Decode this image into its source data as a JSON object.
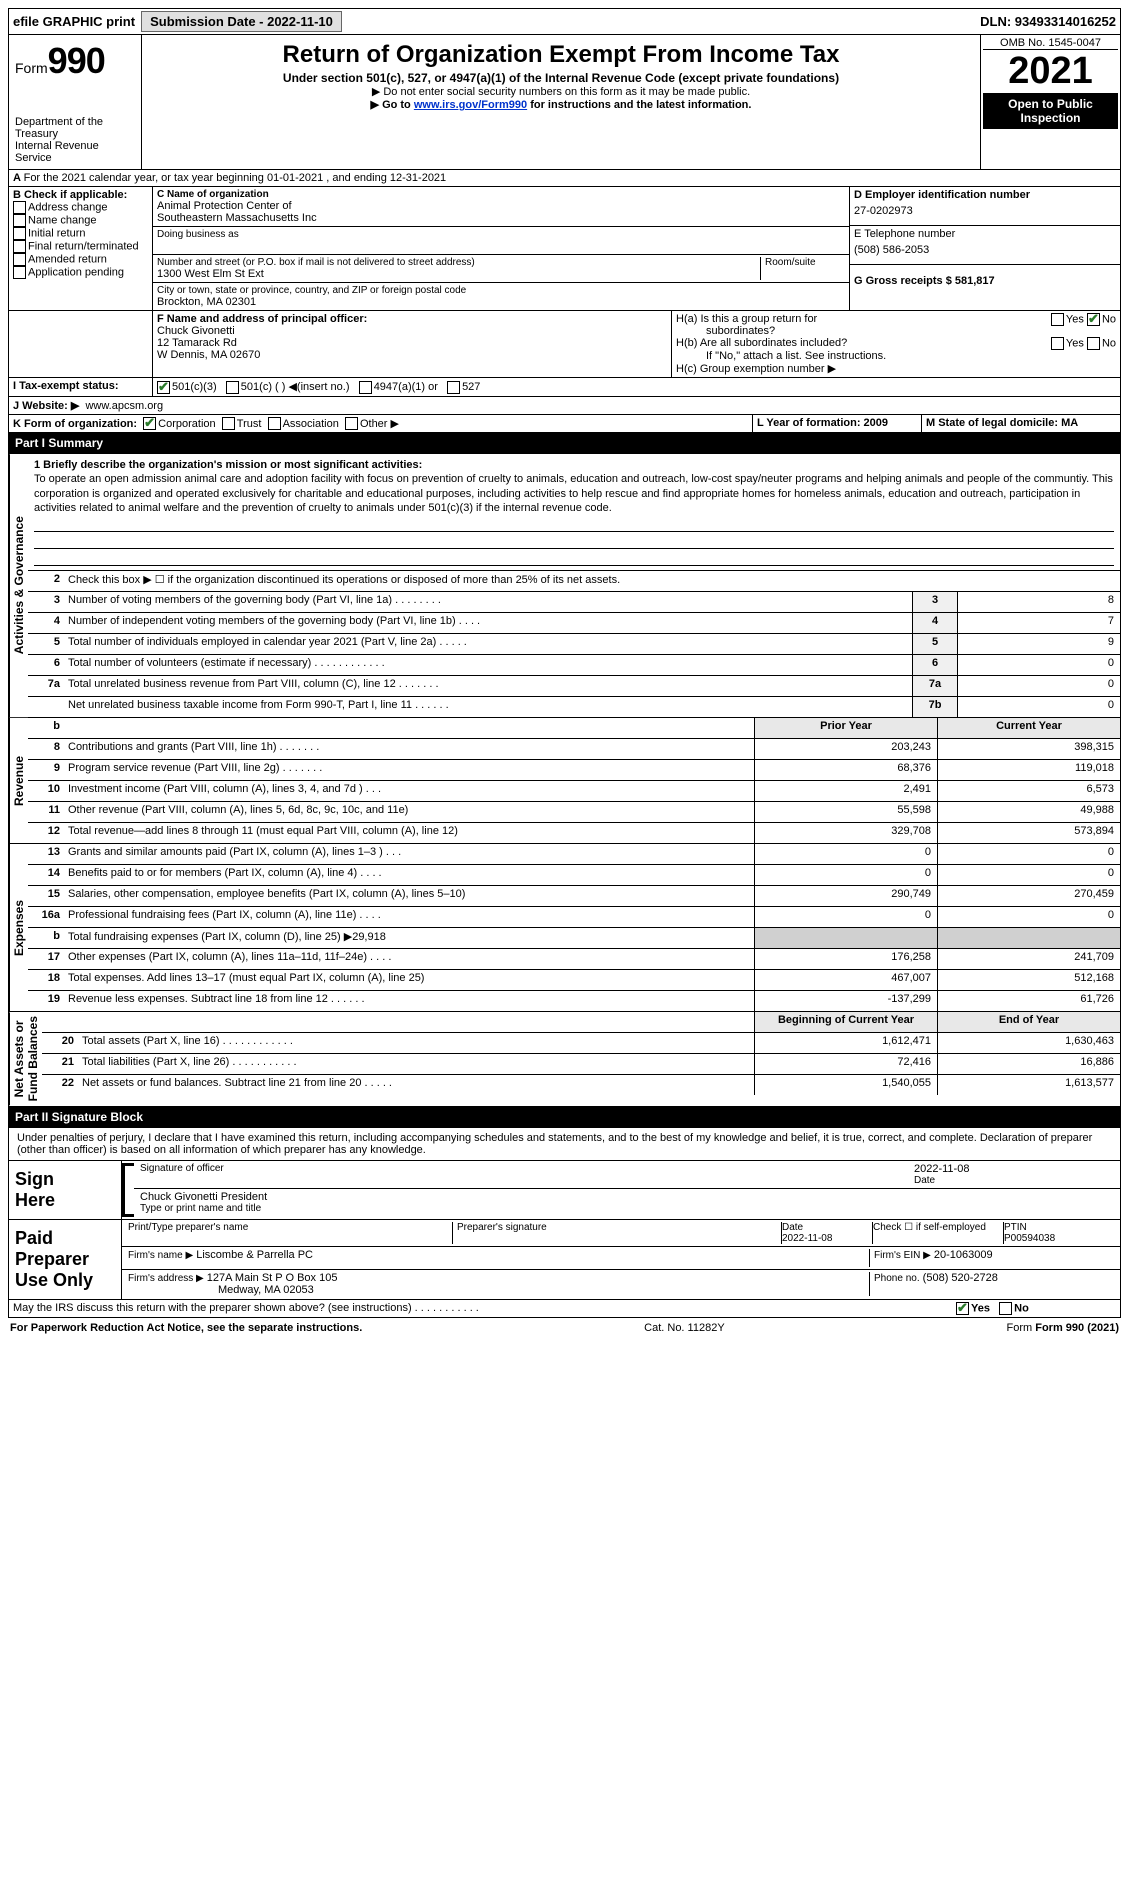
{
  "top_bar": {
    "efile": "efile GRAPHIC print",
    "submission_btn": "Submission Date - 2022-11-10",
    "dln": "DLN: 93493314016252"
  },
  "header": {
    "form_prefix": "Form",
    "form_number": "990",
    "title": "Return of Organization Exempt From Income Tax",
    "subtitle": "Under section 501(c), 527, or 4947(a)(1) of the Internal Revenue Code (except private foundations)",
    "note1": "▶ Do not enter social security numbers on this form as it may be made public.",
    "note2_prefix": "▶ Go to ",
    "note2_link": "www.irs.gov/Form990",
    "note2_suffix": " for instructions and the latest information.",
    "dept": "Department of the Treasury\nInternal Revenue Service",
    "omb": "OMB No. 1545-0047",
    "year": "2021",
    "open": "Open to Public\nInspection"
  },
  "period": {
    "line": "For the 2021 calendar year, or tax year beginning 01-01-2021   , and ending 12-31-2021"
  },
  "section_b": {
    "label": "B Check if applicable:",
    "opts": [
      "Address change",
      "Name change",
      "Initial return",
      "Final return/terminated",
      "Amended return",
      "Application pending"
    ]
  },
  "section_c": {
    "name_label": "C Name of organization",
    "name1": "Animal Protection Center of",
    "name2": "Southeastern Massachusetts Inc",
    "dba_label": "Doing business as",
    "addr_label": "Number and street (or P.O. box if mail is not delivered to street address)",
    "room_label": "Room/suite",
    "addr": "1300 West Elm St Ext",
    "city_label": "City or town, state or province, country, and ZIP or foreign postal code",
    "city": "Brockton, MA  02301"
  },
  "section_d": {
    "label": "D Employer identification number",
    "ein": "27-0202973"
  },
  "section_e": {
    "label": "E Telephone number",
    "phone": "(508) 586-2053"
  },
  "section_g": {
    "label": "G Gross receipts $ 581,817"
  },
  "section_f": {
    "label": "F  Name and address of principal officer:",
    "name": "Chuck Givonetti",
    "addr1": "12 Tamarack Rd",
    "addr2": "W Dennis, MA  02670"
  },
  "section_h": {
    "ha": "H(a)  Is this a group return for",
    "ha2": "subordinates?",
    "hb": "H(b)  Are all subordinates included?",
    "hb2": "If \"No,\" attach a list. See instructions.",
    "hc": "H(c)  Group exemption number ▶"
  },
  "tax_status": {
    "label": "I     Tax-exempt status:",
    "opt1": "501(c)(3)",
    "opt2": "501(c) (  ) ◀(insert no.)",
    "opt3": "4947(a)(1) or",
    "opt4": "527"
  },
  "website": {
    "label": "J    Website: ▶",
    "url": "www.apcsm.org"
  },
  "section_k": {
    "label": "K Form of organization:",
    "opts": [
      "Corporation",
      "Trust",
      "Association",
      "Other ▶"
    ]
  },
  "section_l": {
    "label": "L Year of formation: 2009"
  },
  "section_m": {
    "label": "M State of legal domicile: MA"
  },
  "part1": {
    "header": "Part I      Summary",
    "vtabs": {
      "gov": "Activities & Governance",
      "rev": "Revenue",
      "exp": "Expenses",
      "net": "Net Assets or\nFund Balances"
    },
    "mission_label": "1  Briefly describe the organization's mission or most significant activities:",
    "mission_text": "To operate an open admission animal care and adoption facility with focus on prevention of cruelty to animals, education and outreach, low-cost spay/neuter programs and helping animals and people of the communtiy. This corporation is organized and operated exclusively for charitable and educational purposes, including activities to help rescue and find appropriate homes for homeless animals, education and outreach, participation in activities related to animal welfare and the prevention of cruelty to animals under 501(c)(3) if the internal revenue code.",
    "line2": "Check this box ▶ ☐ if the organization discontinued its operations or disposed of more than 25% of its net assets.",
    "gov_lines": [
      {
        "n": "3",
        "t": "Number of voting members of the governing body (Part VI, line 1a)  .    .    .    .    .    .    .    .",
        "box": "3",
        "v": "8"
      },
      {
        "n": "4",
        "t": "Number of independent voting members of the governing body (Part VI, line 1b)  .    .    .    .",
        "box": "4",
        "v": "7"
      },
      {
        "n": "5",
        "t": "Total number of individuals employed in calendar year 2021 (Part V, line 2a)  .    .    .    .    .",
        "box": "5",
        "v": "9"
      },
      {
        "n": "6",
        "t": "Total number of volunteers (estimate if necessary)  .    .    .    .    .    .    .    .    .    .    .    .",
        "box": "6",
        "v": "0"
      },
      {
        "n": "7a",
        "t": "Total unrelated business revenue from Part VIII, column (C), line 12  .    .    .    .    .    .    .",
        "box": "7a",
        "v": "0"
      },
      {
        "n": "",
        "t": "Net unrelated business taxable income from Form 990-T, Part I, line 11  .    .    .    .    .    .",
        "box": "7b",
        "v": "0"
      }
    ],
    "col_prior": "Prior Year",
    "col_current": "Current Year",
    "rev_lines": [
      {
        "n": "8",
        "t": "Contributions and grants (Part VIII, line 1h)  .    .    .    .    .    .    .",
        "p": "203,243",
        "c": "398,315"
      },
      {
        "n": "9",
        "t": "Program service revenue (Part VIII, line 2g)  .    .    .    .    .    .    .",
        "p": "68,376",
        "c": "119,018"
      },
      {
        "n": "10",
        "t": "Investment income (Part VIII, column (A), lines 3, 4, and 7d )  .    .    .",
        "p": "2,491",
        "c": "6,573"
      },
      {
        "n": "11",
        "t": "Other revenue (Part VIII, column (A), lines 5, 6d, 8c, 9c, 10c, and 11e)",
        "p": "55,598",
        "c": "49,988"
      },
      {
        "n": "12",
        "t": "Total revenue—add lines 8 through 11 (must equal Part VIII, column (A), line 12)",
        "p": "329,708",
        "c": "573,894"
      }
    ],
    "exp_lines": [
      {
        "n": "13",
        "t": "Grants and similar amounts paid (Part IX, column (A), lines 1–3 )  .    .    .",
        "p": "0",
        "c": "0"
      },
      {
        "n": "14",
        "t": "Benefits paid to or for members (Part IX, column (A), line 4)  .    .    .    .",
        "p": "0",
        "c": "0"
      },
      {
        "n": "15",
        "t": "Salaries, other compensation, employee benefits (Part IX, column (A), lines 5–10)",
        "p": "290,749",
        "c": "270,459"
      },
      {
        "n": "16a",
        "t": "Professional fundraising fees (Part IX, column (A), line 11e)  .    .    .    .",
        "p": "0",
        "c": "0"
      },
      {
        "n": "b",
        "t": "Total fundraising expenses (Part IX, column (D), line 25) ▶29,918",
        "p": "",
        "c": "",
        "shade": true
      },
      {
        "n": "17",
        "t": "Other expenses (Part IX, column (A), lines 11a–11d, 11f–24e)  .    .    .    .",
        "p": "176,258",
        "c": "241,709"
      },
      {
        "n": "18",
        "t": "Total expenses. Add lines 13–17 (must equal Part IX, column (A), line 25)",
        "p": "467,007",
        "c": "512,168"
      },
      {
        "n": "19",
        "t": "Revenue less expenses. Subtract line 18 from line 12  .    .    .    .    .    .",
        "p": "-137,299",
        "c": "61,726"
      }
    ],
    "col_begin": "Beginning of Current Year",
    "col_end": "End of Year",
    "net_lines": [
      {
        "n": "20",
        "t": "Total assets (Part X, line 16)  .    .    .    .    .    .    .    .    .    .    .    .",
        "p": "1,612,471",
        "c": "1,630,463"
      },
      {
        "n": "21",
        "t": "Total liabilities (Part X, line 26)  .    .    .    .    .    .    .    .    .    .    .",
        "p": "72,416",
        "c": "16,886"
      },
      {
        "n": "22",
        "t": "Net assets or fund balances. Subtract line 21 from line 20  .    .    .    .    .",
        "p": "1,540,055",
        "c": "1,613,577"
      }
    ]
  },
  "part2": {
    "header": "Part II     Signature Block",
    "declaration": "Under penalties of perjury, I declare that I have examined this return, including accompanying schedules and statements, and to the best of my knowledge and belief, it is true, correct, and complete. Declaration of preparer (other than officer) is based on all information of which preparer has any knowledge.",
    "sign_here": "Sign\nHere",
    "sig_officer": "Signature of officer",
    "sig_date": "2022-11-08",
    "date_label": "Date",
    "officer_name": "Chuck Givonetti President",
    "officer_type": "Type or print name and title",
    "paid": "Paid\nPreparer\nUse Only",
    "prep_name_label": "Print/Type preparer's name",
    "prep_sig_label": "Preparer's signature",
    "prep_date_label": "Date",
    "prep_date": "2022-11-08",
    "check_self": "Check ☐ if self-employed",
    "ptin_label": "PTIN",
    "ptin": "P00594038",
    "firm_name_label": "Firm's name    ▶",
    "firm_name": "Liscombe & Parrella PC",
    "firm_ein_label": "Firm's EIN ▶",
    "firm_ein": "20-1063009",
    "firm_addr_label": "Firm's address ▶",
    "firm_addr1": "127A Main St P O Box 105",
    "firm_addr2": "Medway, MA  02053",
    "firm_phone_label": "Phone no.",
    "firm_phone": "(508) 520-2728"
  },
  "footer": {
    "discuss": "May the IRS discuss this return with the preparer shown above? (see instructions)  .    .    .    .    .    .    .    .    .    .    .",
    "yes": "Yes",
    "no": "No",
    "paperwork": "For Paperwork Reduction Act Notice, see the separate instructions.",
    "cat": "Cat. No. 11282Y",
    "form": "Form 990 (2021)"
  }
}
